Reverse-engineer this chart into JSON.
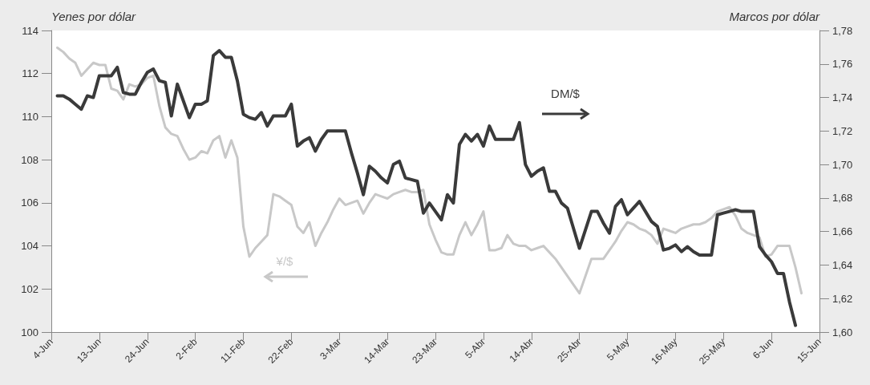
{
  "chart_data": {
    "type": "line",
    "ylabel": "Yenes por dólar",
    "y2label": "Marcos por dólar",
    "categories": [
      "4-Jun",
      null,
      null,
      null,
      null,
      null,
      null,
      null,
      "13-Jun",
      null,
      null,
      null,
      null,
      null,
      null,
      null,
      "24-Jun",
      null,
      null,
      null,
      null,
      null,
      null,
      null,
      "2-Feb",
      null,
      null,
      null,
      null,
      null,
      null,
      null,
      "11-Feb",
      null,
      null,
      null,
      null,
      null,
      null,
      null,
      "22-Feb",
      null,
      null,
      null,
      null,
      null,
      null,
      null,
      "3-Mar",
      null,
      null,
      null,
      null,
      null,
      null,
      null,
      "14-Mar",
      null,
      null,
      null,
      null,
      null,
      null,
      null,
      "23-Mar",
      null,
      null,
      null,
      null,
      null,
      null,
      null,
      "5-Abr",
      null,
      null,
      null,
      null,
      null,
      null,
      null,
      "14-Abr",
      null,
      null,
      null,
      null,
      null,
      null,
      null,
      "25-Abr",
      null,
      null,
      null,
      null,
      null,
      null,
      null,
      "5-May",
      null,
      null,
      null,
      null,
      null,
      null,
      null,
      "16-May",
      null,
      null,
      null,
      null,
      null,
      null,
      null,
      "25-May",
      null,
      null,
      null,
      null,
      null,
      null,
      null,
      "6-Jun",
      null,
      null,
      null,
      null,
      null,
      null,
      null,
      "15-Jun"
    ],
    "ylim": [
      100,
      114
    ],
    "yticks": [
      100,
      102,
      104,
      106,
      108,
      110,
      112,
      114
    ],
    "y2lim": [
      1.6,
      1.78
    ],
    "y2ticks": [
      {
        "value": 1.6,
        "label": "1,60"
      },
      {
        "value": 1.62,
        "label": "1,62"
      },
      {
        "value": 1.64,
        "label": "1,64"
      },
      {
        "value": 1.66,
        "label": "1,66"
      },
      {
        "value": 1.68,
        "label": "1,68"
      },
      {
        "value": 1.7,
        "label": "1,70"
      },
      {
        "value": 1.72,
        "label": "1,72"
      },
      {
        "value": 1.74,
        "label": "1,74"
      },
      {
        "value": 1.76,
        "label": "1,76"
      },
      {
        "value": 1.78,
        "label": "1,78"
      }
    ],
    "grid": false,
    "legend": false,
    "marker": "none",
    "line_style": "solid",
    "series": [
      {
        "name": "¥/$",
        "color": "#c8c8c8",
        "values": [
          null,
          113.2,
          113.0,
          112.7,
          112.5,
          111.9,
          112.2,
          112.5,
          112.4,
          112.4,
          111.3,
          111.2,
          110.8,
          111.5,
          111.4,
          111.5,
          111.8,
          111.9,
          110.5,
          109.5,
          109.2,
          109.1,
          108.5,
          108.0,
          108.1,
          108.4,
          108.3,
          108.9,
          109.1,
          108.1,
          108.9,
          108.1,
          104.9,
          103.5,
          103.9,
          104.2,
          104.5,
          106.4,
          106.3,
          106.1,
          105.9,
          104.9,
          104.6,
          105.1,
          104.0,
          104.6,
          105.1,
          105.7,
          106.2,
          105.9,
          106.0,
          106.1,
          105.5,
          106.0,
          106.4,
          106.3,
          106.2,
          106.4,
          106.5,
          106.6,
          106.5,
          106.5,
          106.6,
          105.0,
          104.3,
          103.7,
          103.6,
          103.6,
          104.5,
          105.1,
          104.5,
          105.0,
          105.6,
          103.8,
          103.8,
          103.9,
          104.5,
          104.1,
          104.0,
          104.0,
          103.8,
          103.9,
          104.0,
          103.7,
          103.4,
          103.0,
          102.6,
          102.2,
          101.8,
          102.6,
          103.4,
          103.4,
          103.4,
          103.8,
          104.2,
          104.7,
          105.1,
          105.0,
          104.8,
          104.7,
          104.5,
          104.1,
          104.8,
          104.7,
          104.6,
          104.8,
          104.9,
          105.0,
          105.0,
          105.1,
          105.3,
          105.6,
          105.7,
          105.8,
          105.4,
          104.8,
          104.6,
          104.5,
          104.4,
          103.5,
          103.6,
          104.0,
          104.0,
          104.0,
          103.0,
          101.8,
          null,
          null,
          null
        ]
      },
      {
        "name": "DM/$",
        "color": "#3a3a3a",
        "axis": "y2",
        "values": [
          null,
          1.741,
          1.741,
          1.739,
          1.736,
          1.733,
          1.741,
          1.74,
          1.753,
          1.753,
          1.753,
          1.758,
          1.743,
          1.742,
          1.742,
          1.749,
          1.755,
          1.757,
          1.75,
          1.749,
          1.729,
          1.748,
          1.738,
          1.728,
          1.736,
          1.736,
          1.738,
          1.765,
          1.768,
          1.764,
          1.764,
          1.75,
          1.73,
          1.728,
          1.727,
          1.731,
          1.723,
          1.729,
          1.729,
          1.729,
          1.736,
          1.711,
          1.714,
          1.716,
          1.708,
          1.715,
          1.72,
          1.72,
          1.72,
          1.72,
          1.707,
          1.695,
          1.682,
          1.699,
          1.696,
          1.692,
          1.689,
          1.7,
          1.702,
          1.692,
          1.691,
          1.69,
          1.671,
          1.677,
          1.672,
          1.667,
          1.682,
          1.677,
          1.712,
          1.718,
          1.714,
          1.718,
          1.711,
          1.723,
          1.715,
          1.715,
          1.715,
          1.715,
          1.725,
          1.7,
          1.693,
          1.696,
          1.698,
          1.684,
          1.684,
          1.677,
          1.674,
          1.662,
          1.65,
          1.661,
          1.672,
          1.672,
          1.665,
          1.659,
          1.675,
          1.679,
          1.67,
          1.674,
          1.678,
          1.672,
          1.666,
          1.663,
          1.649,
          1.65,
          1.652,
          1.648,
          1.651,
          1.648,
          1.646,
          1.646,
          1.646,
          1.67,
          1.671,
          1.672,
          1.673,
          1.672,
          1.672,
          1.672,
          1.651,
          1.646,
          1.642,
          1.635,
          1.635,
          1.618,
          1.604,
          null,
          null,
          null,
          null
        ]
      }
    ]
  }
}
